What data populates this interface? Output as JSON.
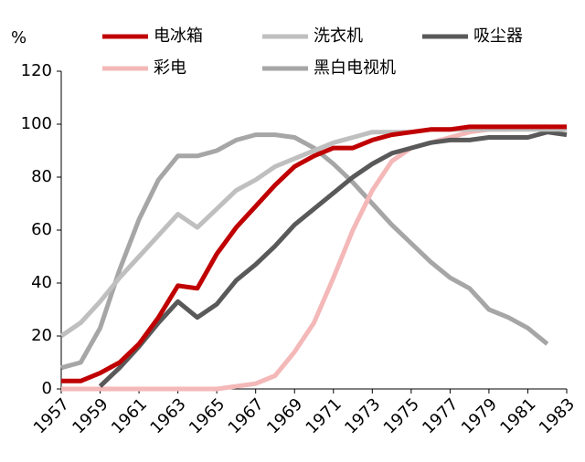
{
  "chart_data": {
    "type": "line",
    "y_label": "%",
    "x": [
      1957,
      1958,
      1959,
      1960,
      1961,
      1962,
      1963,
      1964,
      1965,
      1966,
      1967,
      1968,
      1969,
      1970,
      1971,
      1972,
      1973,
      1974,
      1975,
      1976,
      1977,
      1978,
      1979,
      1980,
      1981,
      1982,
      1983
    ],
    "xlim": [
      1957,
      1983
    ],
    "xticks": [
      1957,
      1959,
      1961,
      1963,
      1965,
      1967,
      1969,
      1971,
      1973,
      1975,
      1977,
      1979,
      1981,
      1983
    ],
    "ylim": [
      0,
      120
    ],
    "yticks": [
      0,
      20,
      40,
      60,
      80,
      100,
      120
    ],
    "grid": false,
    "series": [
      {
        "name": "电冰箱",
        "color": "#c00000",
        "values": [
          3,
          3,
          6,
          10,
          17,
          27,
          39,
          38,
          51,
          61,
          69,
          77,
          84,
          88,
          91,
          91,
          94,
          96,
          97,
          98,
          98,
          99,
          99,
          99,
          99,
          99,
          99
        ]
      },
      {
        "name": "洗衣机",
        "color": "#bfbfbf",
        "values": [
          20,
          25,
          33,
          42,
          50,
          58,
          66,
          61,
          68,
          75,
          79,
          84,
          87,
          90,
          93,
          95,
          97,
          97,
          97,
          98,
          98,
          98,
          98,
          98,
          98,
          98,
          98
        ]
      },
      {
        "name": "吸尘器",
        "color": "#595959",
        "values": [
          null,
          null,
          1,
          8,
          16,
          25,
          33,
          27,
          32,
          41,
          47,
          54,
          62,
          68,
          74,
          80,
          85,
          89,
          91,
          93,
          94,
          94,
          95,
          95,
          95,
          97,
          96
        ]
      },
      {
        "name": "彩电",
        "color": "#f4b8b8",
        "values": [
          0,
          0,
          0,
          0,
          0,
          0,
          0,
          0,
          0,
          1,
          2,
          5,
          14,
          25,
          42,
          60,
          75,
          86,
          91,
          93,
          95,
          97,
          98,
          98,
          99,
          99,
          98
        ]
      },
      {
        "name": "黑白电视机",
        "color": "#a6a6a6",
        "values": [
          8,
          10,
          23,
          45,
          64,
          79,
          88,
          88,
          90,
          94,
          96,
          96,
          95,
          91,
          85,
          78,
          70,
          62,
          55,
          48,
          42,
          38,
          30,
          27,
          23,
          17,
          null
        ]
      }
    ]
  }
}
